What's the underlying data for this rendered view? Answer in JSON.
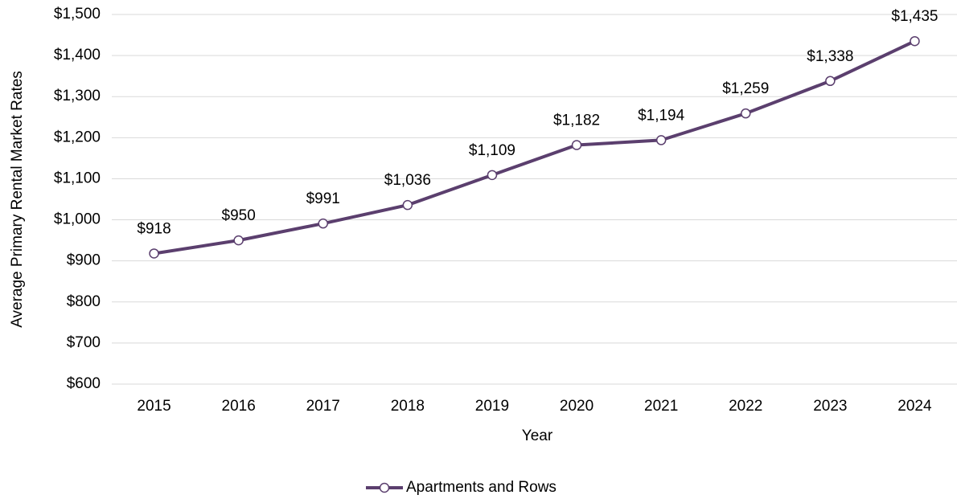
{
  "chart_data": {
    "type": "line",
    "categories": [
      "2015",
      "2016",
      "2017",
      "2018",
      "2019",
      "2020",
      "2021",
      "2022",
      "2023",
      "2024"
    ],
    "series": [
      {
        "name": "Apartments and Rows",
        "color": "#5b3f6e",
        "values": [
          918,
          950,
          991,
          1036,
          1109,
          1182,
          1194,
          1259,
          1338,
          1435
        ],
        "value_labels": [
          "$918",
          "$950",
          "$991",
          "$1,036",
          "$1,109",
          "$1,182",
          "$1,194",
          "$1,259",
          "$1,338",
          "$1,435"
        ]
      }
    ],
    "xlabel": "Year",
    "ylabel": "Average Primary Rental Market Rates",
    "ylim": [
      600,
      1500
    ],
    "yticks": [
      {
        "value": 600,
        "label": "$600"
      },
      {
        "value": 700,
        "label": "$700"
      },
      {
        "value": 800,
        "label": "$800"
      },
      {
        "value": 900,
        "label": "$900"
      },
      {
        "value": 1000,
        "label": "$1,000"
      },
      {
        "value": 1100,
        "label": "$1,100"
      },
      {
        "value": 1200,
        "label": "$1,200"
      },
      {
        "value": 1300,
        "label": "$1,300"
      },
      {
        "value": 1400,
        "label": "$1,400"
      },
      {
        "value": 1500,
        "label": "$1,500"
      }
    ],
    "grid": true,
    "legend": "bottom"
  }
}
